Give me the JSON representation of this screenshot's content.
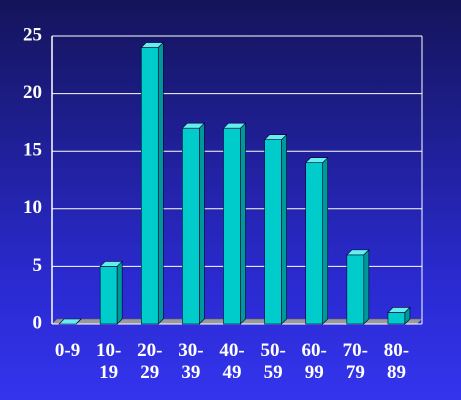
{
  "chart_data": {
    "type": "bar",
    "categories": [
      "0-9",
      "10-19",
      "20-29",
      "30-39",
      "40-49",
      "50-59",
      "60-99",
      "70-79",
      "80-89"
    ],
    "values": [
      0,
      5,
      24,
      17,
      17,
      16,
      14,
      6,
      1
    ],
    "color": "#00cccc",
    "ylim": [
      0,
      25
    ],
    "yticks": [
      0,
      5,
      10,
      15,
      20,
      25
    ],
    "grid": true
  }
}
